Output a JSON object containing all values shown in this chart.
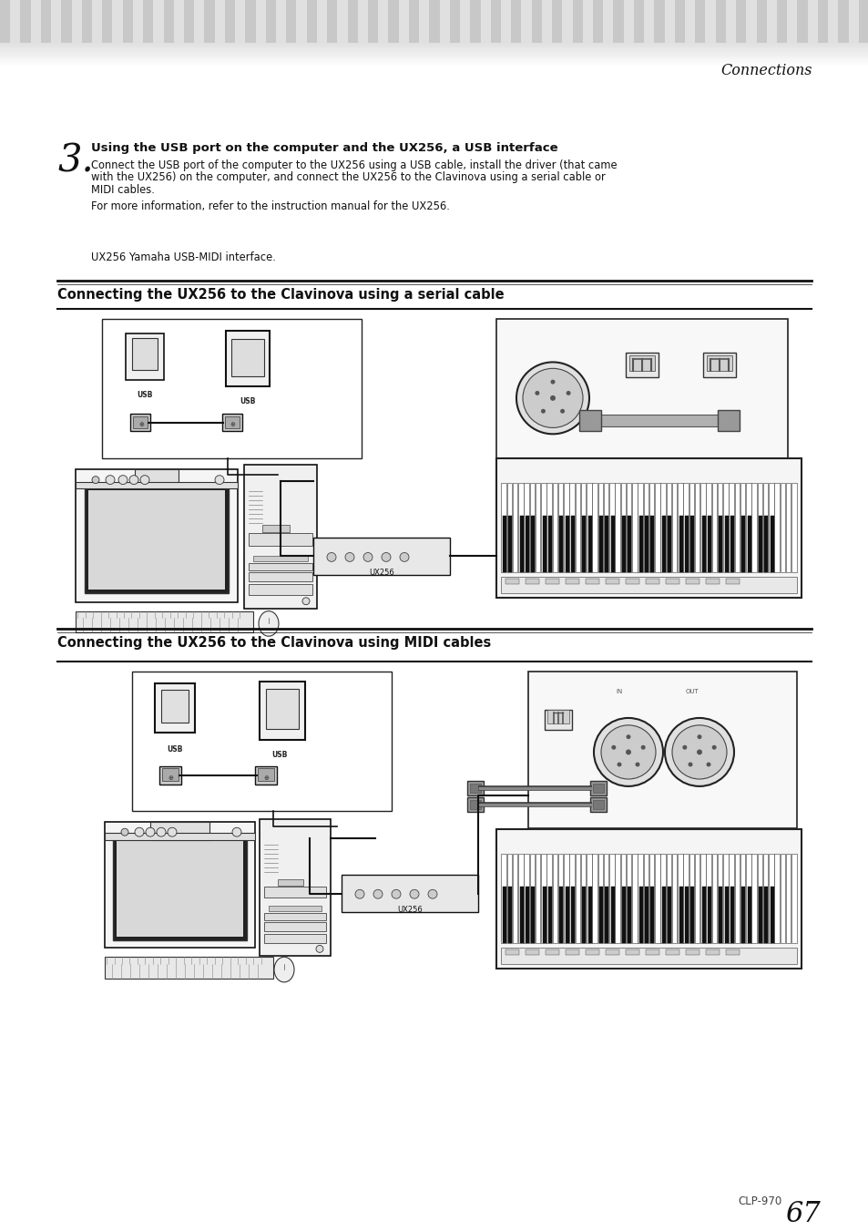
{
  "bg_color": "#ffffff",
  "page_title": "Connections",
  "step_number": "3.",
  "step_heading": "Using the USB port on the computer and the UX256, a USB interface",
  "step_body1": "Connect the USB port of the computer to the UX256 using a USB cable, install the driver (that came",
  "step_body2": "with the UX256) on the computer, and connect the UX256 to the Clavinova using a serial cable or",
  "step_body3": "MIDI cables.",
  "step_body4": "For more information, refer to the instruction manual for the UX256.",
  "step_note": "UX256 Yamaha USB-MIDI interface.",
  "section1_title": "Connecting the UX256 to the Clavinova using a serial cable",
  "section2_title": "Connecting the UX256 to the Clavinova using MIDI cables",
  "footer_text": "CLP-970",
  "footer_page": "67"
}
